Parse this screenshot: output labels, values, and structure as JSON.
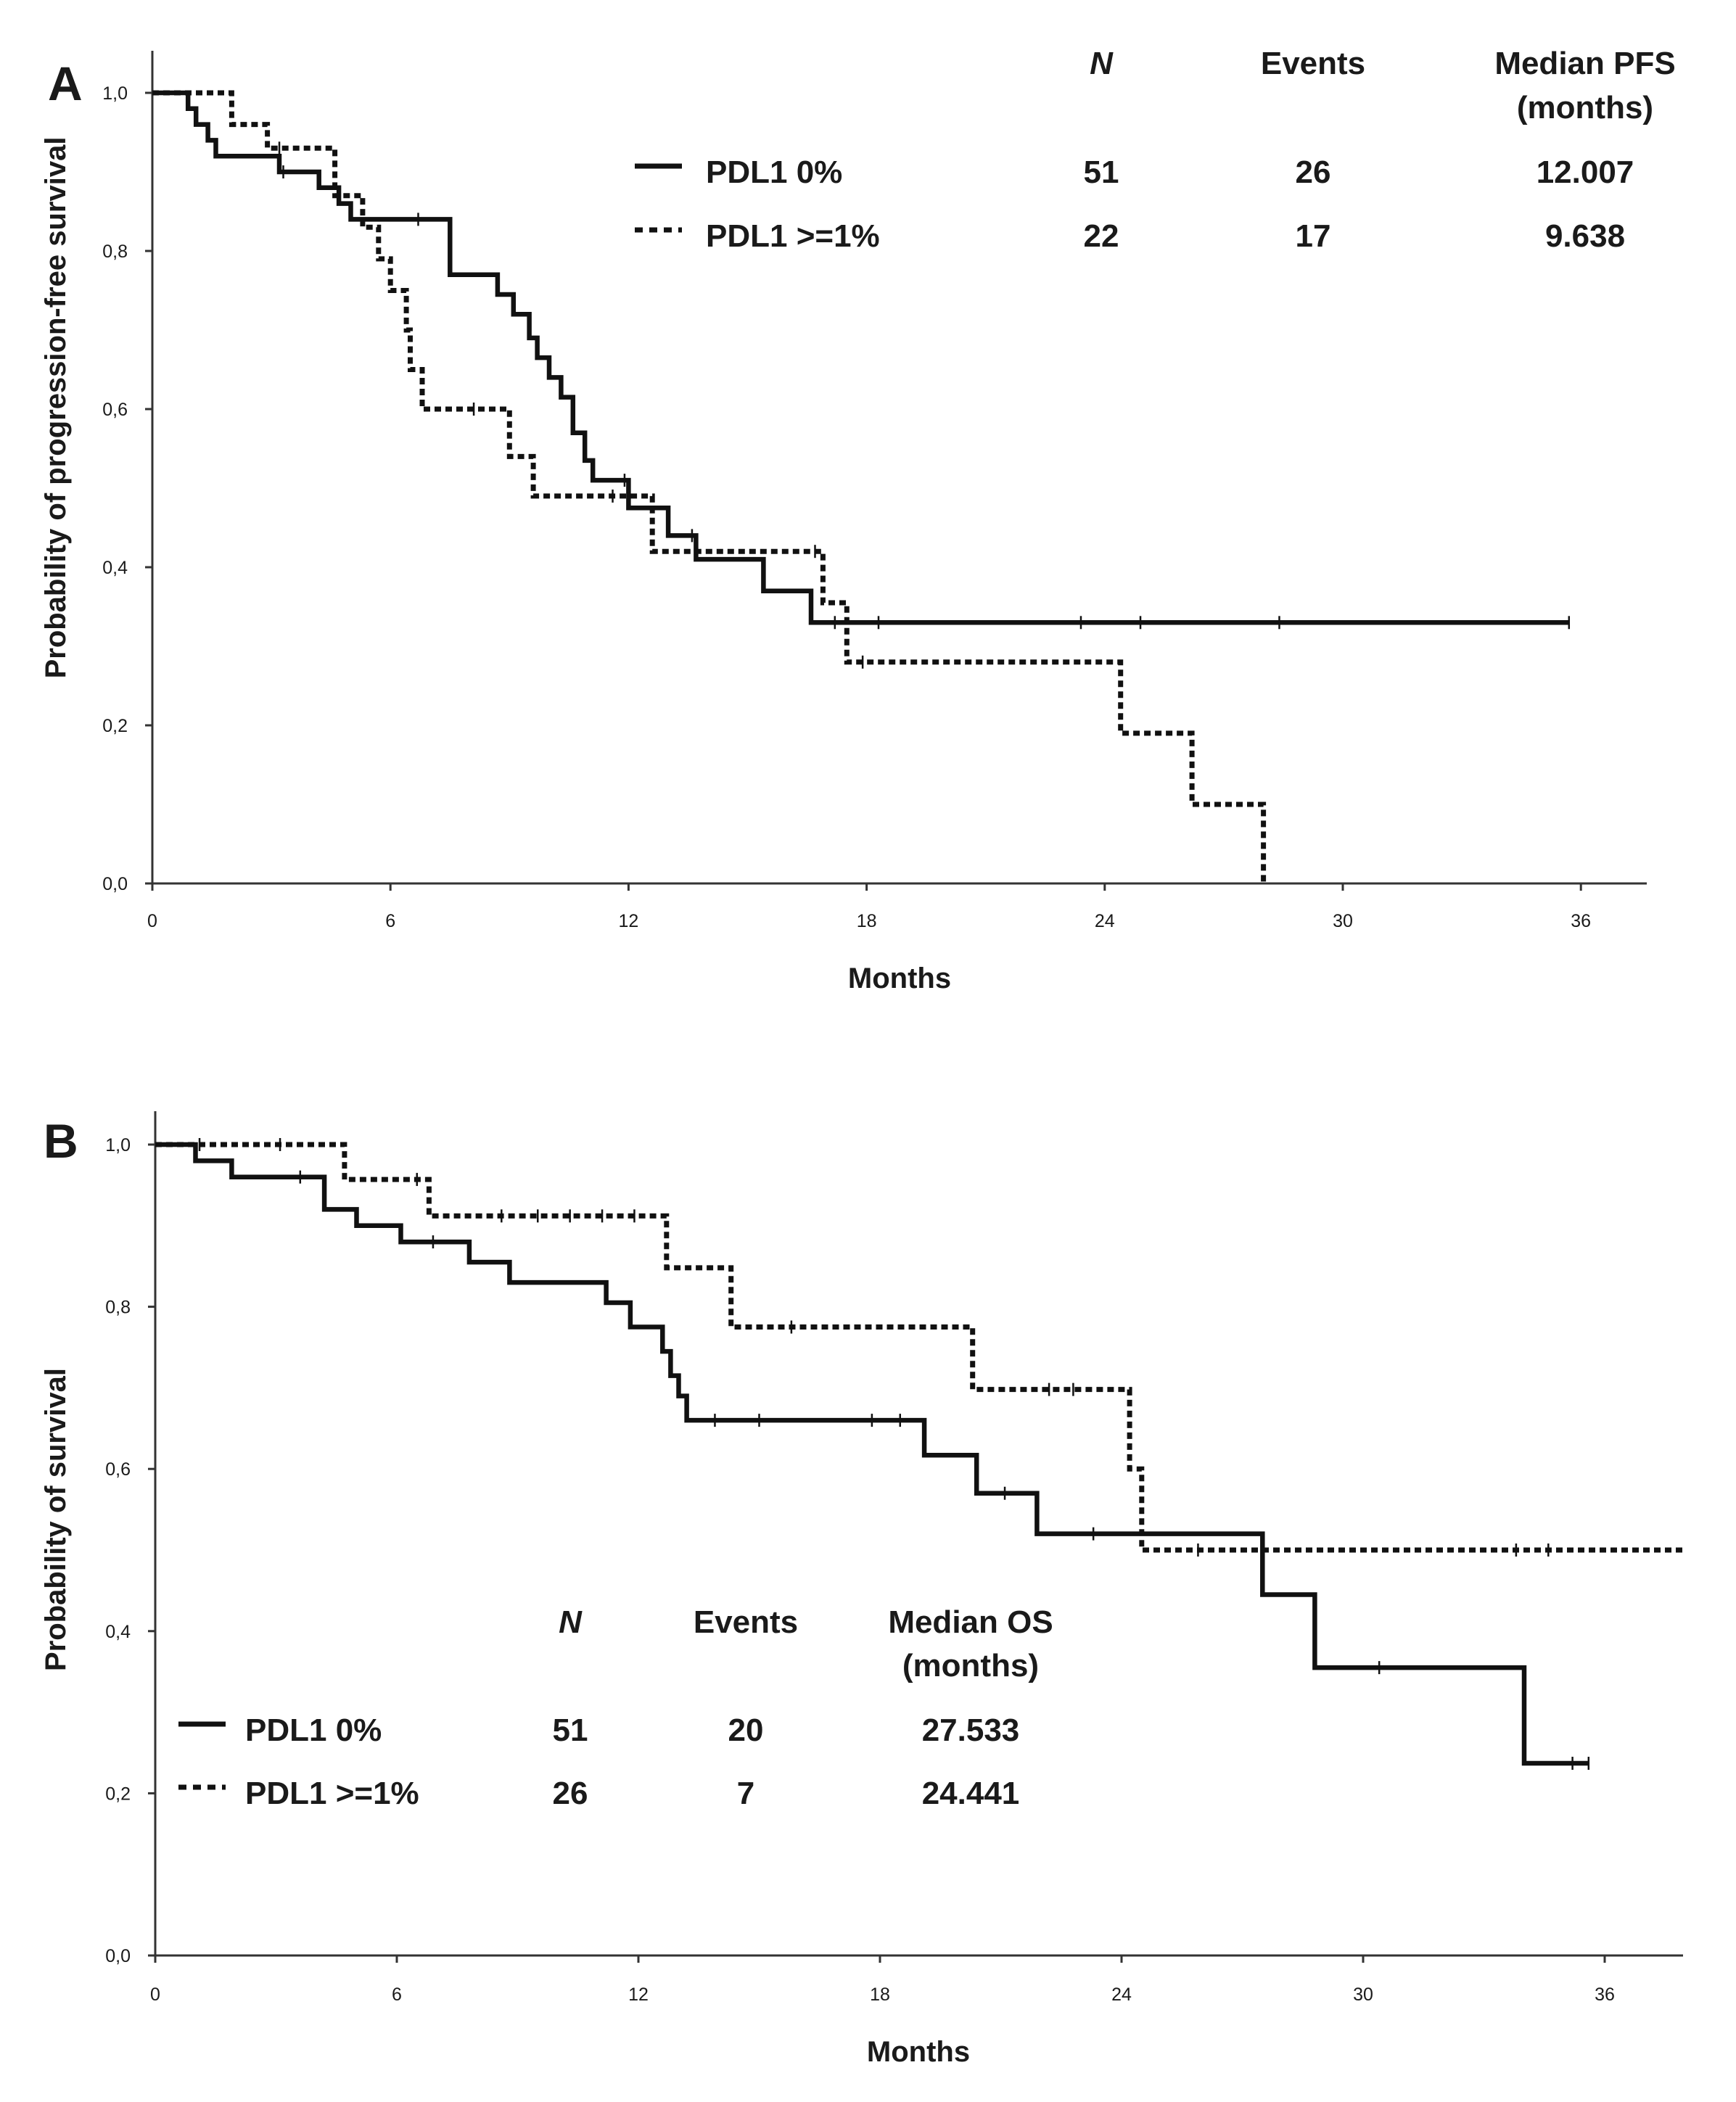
{
  "chart_data": [
    {
      "type": "line",
      "panel_label": "A",
      "subtype": "kaplan-meier step",
      "xlabel": "Months",
      "ylabel": "Probability of progression-free survival",
      "xlim": [
        0,
        38
      ],
      "ylim": [
        0,
        1.05
      ],
      "xticks": [
        0,
        6,
        12,
        18,
        24,
        30,
        36
      ],
      "yticks": [
        0,
        0.2,
        0.4,
        0.6,
        0.8,
        1.0
      ],
      "xtick_labels": [
        "0",
        "6",
        "12",
        "18",
        "24",
        "30",
        "36"
      ],
      "ytick_labels": [
        "0,0",
        "0,2",
        "0,4",
        "0,6",
        "0,8",
        "1,0"
      ],
      "legend": {
        "placement": "top-right",
        "headers": {
          "n": "N",
          "events": "Events",
          "median_line1": "Median PFS",
          "median_line2": "(months)"
        },
        "rows": [
          {
            "label": "PDL1 0%",
            "n": "51",
            "events": "26",
            "median": "12.007"
          },
          {
            "label": "PDL1 >=1%",
            "n": "22",
            "events": "17",
            "median": "9.638"
          }
        ]
      },
      "series": [
        {
          "name": "PDL1 0%",
          "style": "solid",
          "points": [
            [
              0,
              1.0
            ],
            [
              0.9,
              1.0
            ],
            [
              0.9,
              0.98
            ],
            [
              1.1,
              0.98
            ],
            [
              1.1,
              0.96
            ],
            [
              1.4,
              0.96
            ],
            [
              1.4,
              0.94
            ],
            [
              1.6,
              0.94
            ],
            [
              1.6,
              0.92
            ],
            [
              3.2,
              0.92
            ],
            [
              3.2,
              0.9
            ],
            [
              4.2,
              0.9
            ],
            [
              4.2,
              0.88
            ],
            [
              4.7,
              0.88
            ],
            [
              4.7,
              0.86
            ],
            [
              5.0,
              0.86
            ],
            [
              5.0,
              0.84
            ],
            [
              7.5,
              0.84
            ],
            [
              7.5,
              0.77
            ],
            [
              8.7,
              0.77
            ],
            [
              8.7,
              0.745
            ],
            [
              9.1,
              0.745
            ],
            [
              9.1,
              0.72
            ],
            [
              9.5,
              0.72
            ],
            [
              9.5,
              0.69
            ],
            [
              9.7,
              0.69
            ],
            [
              9.7,
              0.665
            ],
            [
              10.0,
              0.665
            ],
            [
              10.0,
              0.64
            ],
            [
              10.3,
              0.64
            ],
            [
              10.3,
              0.615
            ],
            [
              10.6,
              0.615
            ],
            [
              10.6,
              0.57
            ],
            [
              10.9,
              0.57
            ],
            [
              10.9,
              0.535
            ],
            [
              11.1,
              0.535
            ],
            [
              11.1,
              0.51
            ],
            [
              12.0,
              0.51
            ],
            [
              12.0,
              0.475
            ],
            [
              13.0,
              0.475
            ],
            [
              13.0,
              0.44
            ],
            [
              13.7,
              0.44
            ],
            [
              13.7,
              0.41
            ],
            [
              15.4,
              0.41
            ],
            [
              15.4,
              0.37
            ],
            [
              16.6,
              0.37
            ],
            [
              16.6,
              0.33
            ],
            [
              35.7,
              0.33
            ]
          ],
          "censor_x": [
            3.3,
            6.7,
            11.9,
            13.6,
            17.2,
            18.3,
            23.4,
            24.9,
            28.4,
            35.7
          ]
        },
        {
          "name": "PDL1 >=1%",
          "style": "dotted",
          "points": [
            [
              0,
              1.0
            ],
            [
              2.0,
              1.0
            ],
            [
              2.0,
              0.96
            ],
            [
              2.9,
              0.96
            ],
            [
              2.9,
              0.93
            ],
            [
              4.6,
              0.93
            ],
            [
              4.6,
              0.87
            ],
            [
              5.3,
              0.87
            ],
            [
              5.3,
              0.83
            ],
            [
              5.7,
              0.83
            ],
            [
              5.7,
              0.79
            ],
            [
              6.0,
              0.79
            ],
            [
              6.0,
              0.75
            ],
            [
              6.4,
              0.75
            ],
            [
              6.4,
              0.7
            ],
            [
              6.5,
              0.7
            ],
            [
              6.5,
              0.65
            ],
            [
              6.8,
              0.65
            ],
            [
              6.8,
              0.6
            ],
            [
              9.0,
              0.6
            ],
            [
              9.0,
              0.54
            ],
            [
              9.6,
              0.54
            ],
            [
              9.6,
              0.49
            ],
            [
              12.6,
              0.49
            ],
            [
              12.6,
              0.42
            ],
            [
              16.9,
              0.42
            ],
            [
              16.9,
              0.355
            ],
            [
              17.5,
              0.355
            ],
            [
              17.5,
              0.28
            ],
            [
              24.4,
              0.28
            ],
            [
              24.4,
              0.19
            ],
            [
              26.2,
              0.19
            ],
            [
              26.2,
              0.1
            ],
            [
              28.0,
              0.1
            ],
            [
              28.0,
              0.0
            ]
          ],
          "censor_x": [
            3.2,
            8.1,
            11.6,
            16.7,
            17.9
          ]
        }
      ]
    },
    {
      "type": "line",
      "panel_label": "B",
      "subtype": "kaplan-meier step",
      "xlabel": "Months",
      "ylabel": "Probability of survival",
      "xlim": [
        0,
        38
      ],
      "ylim": [
        0,
        1.05
      ],
      "xticks": [
        0,
        6,
        12,
        18,
        24,
        30,
        36
      ],
      "yticks": [
        0,
        0.2,
        0.4,
        0.6,
        0.8,
        1.0
      ],
      "xtick_labels": [
        "0",
        "6",
        "12",
        "18",
        "24",
        "30",
        "36"
      ],
      "ytick_labels": [
        "0,0",
        "0,2",
        "0,4",
        "0,6",
        "0,8",
        "1,0"
      ],
      "legend": {
        "placement": "bottom-left",
        "headers": {
          "n": "N",
          "events": "Events",
          "median_line1": "Median OS",
          "median_line2": "(months)"
        },
        "rows": [
          {
            "label": "PDL1 0%",
            "n": "51",
            "events": "20",
            "median": "27.533"
          },
          {
            "label": "PDL1 >=1%",
            "n": "26",
            "events": "7",
            "median": "24.441"
          }
        ]
      },
      "series": [
        {
          "name": "PDL1 0%",
          "style": "solid",
          "points": [
            [
              0,
              1.0
            ],
            [
              1.0,
              1.0
            ],
            [
              1.0,
              0.98
            ],
            [
              1.9,
              0.98
            ],
            [
              1.9,
              0.96
            ],
            [
              4.2,
              0.96
            ],
            [
              4.2,
              0.92
            ],
            [
              5.0,
              0.92
            ],
            [
              5.0,
              0.9
            ],
            [
              6.1,
              0.9
            ],
            [
              6.1,
              0.88
            ],
            [
              7.8,
              0.88
            ],
            [
              7.8,
              0.855
            ],
            [
              8.8,
              0.855
            ],
            [
              8.8,
              0.83
            ],
            [
              11.2,
              0.83
            ],
            [
              11.2,
              0.805
            ],
            [
              11.8,
              0.805
            ],
            [
              11.8,
              0.775
            ],
            [
              12.6,
              0.775
            ],
            [
              12.6,
              0.745
            ],
            [
              12.8,
              0.745
            ],
            [
              12.8,
              0.715
            ],
            [
              13.0,
              0.715
            ],
            [
              13.0,
              0.69
            ],
            [
              13.2,
              0.69
            ],
            [
              13.2,
              0.66
            ],
            [
              19.1,
              0.66
            ],
            [
              19.1,
              0.617
            ],
            [
              20.4,
              0.617
            ],
            [
              20.4,
              0.57
            ],
            [
              21.9,
              0.57
            ],
            [
              21.9,
              0.52
            ],
            [
              27.5,
              0.52
            ],
            [
              27.5,
              0.445
            ],
            [
              28.8,
              0.445
            ],
            [
              28.8,
              0.355
            ],
            [
              34.0,
              0.355
            ],
            [
              34.0,
              0.237
            ],
            [
              35.6,
              0.237
            ]
          ],
          "censor_x": [
            3.6,
            6.9,
            13.9,
            15.0,
            17.8,
            18.5,
            21.1,
            23.3,
            30.4,
            35.2,
            35.6
          ]
        },
        {
          "name": "PDL1 >=1%",
          "style": "dotted",
          "points": [
            [
              0,
              1.0
            ],
            [
              4.7,
              1.0
            ],
            [
              4.7,
              0.957
            ],
            [
              6.8,
              0.957
            ],
            [
              6.8,
              0.912
            ],
            [
              12.7,
              0.912
            ],
            [
              12.7,
              0.848
            ],
            [
              14.3,
              0.848
            ],
            [
              14.3,
              0.775
            ],
            [
              20.3,
              0.775
            ],
            [
              20.3,
              0.698
            ],
            [
              24.2,
              0.698
            ],
            [
              24.2,
              0.6
            ],
            [
              24.5,
              0.6
            ],
            [
              24.5,
              0.5
            ],
            [
              38.0,
              0.5
            ]
          ],
          "censor_x": [
            1.1,
            3.1,
            6.5,
            8.6,
            9.5,
            10.3,
            11.1,
            11.9,
            15.8,
            22.2,
            22.8,
            25.9,
            33.8,
            34.6
          ]
        }
      ]
    }
  ]
}
